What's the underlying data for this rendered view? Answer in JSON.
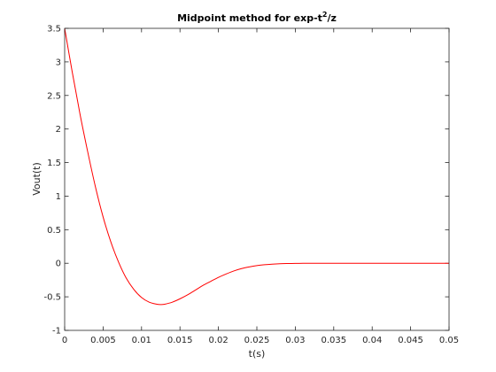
{
  "chart_data": {
    "type": "line",
    "title_main": "Midpoint method for exp-t",
    "title_sup": "2",
    "title_tail": "/z",
    "xlabel": "t(s)",
    "ylabel": "Vout(t)",
    "xlim": [
      0,
      0.05
    ],
    "ylim": [
      -1,
      3.5
    ],
    "xticks": [
      0,
      0.005,
      0.01,
      0.015,
      0.02,
      0.025,
      0.03,
      0.035,
      0.04,
      0.045,
      0.05
    ],
    "xtick_labels": [
      "0",
      "0.005",
      "0.01",
      "0.015",
      "0.02",
      "0.025",
      "0.03",
      "0.035",
      "0.04",
      "0.045",
      "0.05"
    ],
    "yticks": [
      -1,
      -0.5,
      0,
      0.5,
      1,
      1.5,
      2,
      2.5,
      3,
      3.5
    ],
    "ytick_labels": [
      "-1",
      "-0.5",
      "0",
      "0.5",
      "1",
      "1.5",
      "2",
      "2.5",
      "3",
      "3.5"
    ],
    "grid": false,
    "series": [
      {
        "color": "#ff0000",
        "x": [
          0,
          0.001,
          0.002,
          0.003,
          0.004,
          0.005,
          0.006,
          0.007,
          0.008,
          0.009,
          0.01,
          0.011,
          0.012,
          0.0125,
          0.013,
          0.014,
          0.015,
          0.016,
          0.017,
          0.018,
          0.019,
          0.02,
          0.021,
          0.022,
          0.023,
          0.024,
          0.025,
          0.026,
          0.027,
          0.028,
          0.029,
          0.03,
          0.031,
          0.032,
          0.033,
          0.034,
          0.035,
          0.036,
          0.038,
          0.04,
          0.042,
          0.044,
          0.046,
          0.048,
          0.05
        ],
        "y": [
          3.5,
          2.84,
          2.22,
          1.66,
          1.14,
          0.69,
          0.32,
          0.02,
          -0.22,
          -0.39,
          -0.51,
          -0.58,
          -0.61,
          -0.615,
          -0.61,
          -0.58,
          -0.53,
          -0.47,
          -0.4,
          -0.33,
          -0.27,
          -0.21,
          -0.16,
          -0.115,
          -0.08,
          -0.055,
          -0.035,
          -0.022,
          -0.013,
          -0.007,
          -0.004,
          -0.002,
          -0.001,
          -0.0005,
          -0.0002,
          -0.0001,
          0,
          0,
          0,
          0,
          0,
          0,
          0,
          0,
          0
        ]
      }
    ]
  }
}
